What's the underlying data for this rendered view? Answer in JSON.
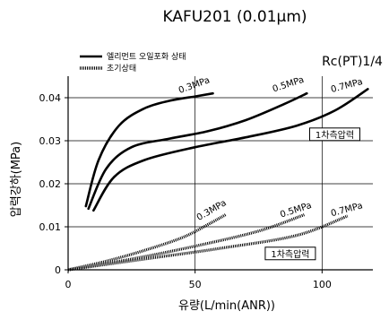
{
  "title": "KAFU201 (0.01μm)",
  "connection": "Rc(PT)1/4",
  "chart_data": {
    "type": "line",
    "title": "KAFU201 (0.01μm)",
    "xlabel": "유량(L/min(ANR))",
    "ylabel": "압력강하(MPa)",
    "xlim": [
      0,
      120
    ],
    "ylim": [
      0,
      0.045
    ],
    "xticks": [
      0,
      50,
      100
    ],
    "yticks": [
      0,
      0.01,
      0.02,
      0.03,
      0.04
    ],
    "xtick_labels": [
      "0",
      "50",
      "100"
    ],
    "ytick_labels": [
      "0",
      "0.01",
      "0.02",
      "0.03",
      "0.04"
    ],
    "grid": true,
    "legend_position": "top-left",
    "legend": [
      {
        "label": "엘리먼트 오일포화 상태",
        "style": "solid"
      },
      {
        "label": "초기상태",
        "style": "hatched"
      }
    ],
    "series": [
      {
        "name": "엘리먼트 오일포화 상태",
        "label": "0.3MPa",
        "x": [
          7,
          12,
          20,
          30,
          40,
          50,
          57
        ],
        "y": [
          0.0148,
          0.0255,
          0.0335,
          0.0375,
          0.0393,
          0.0403,
          0.041
        ]
      },
      {
        "name": "엘리먼트 오일포화 상태",
        "label": "0.5MPa",
        "x": [
          8,
          15,
          25,
          40,
          55,
          70,
          85,
          94
        ],
        "y": [
          0.0142,
          0.0235,
          0.0285,
          0.0305,
          0.0322,
          0.0348,
          0.0385,
          0.041
        ]
      },
      {
        "name": "엘리먼트 오일포화 상태",
        "label": "0.7MPa",
        "x": [
          10,
          18,
          30,
          50,
          70,
          90,
          105,
          118
        ],
        "y": [
          0.0138,
          0.0215,
          0.0255,
          0.0285,
          0.0308,
          0.0335,
          0.037,
          0.042
        ]
      },
      {
        "name": "초기상태",
        "label": "0.3MPa",
        "x": [
          0,
          15,
          30,
          45,
          55,
          62
        ],
        "y": [
          0,
          0.002,
          0.0045,
          0.0075,
          0.0105,
          0.0128
        ]
      },
      {
        "name": "초기상태",
        "label": "0.5MPa",
        "x": [
          0,
          25,
          50,
          75,
          93
        ],
        "y": [
          0,
          0.0025,
          0.0055,
          0.009,
          0.0128
        ]
      },
      {
        "name": "초기상태",
        "label": "0.7MPa",
        "x": [
          0,
          30,
          60,
          90,
          110
        ],
        "y": [
          0,
          0.0025,
          0.005,
          0.008,
          0.0125
        ]
      }
    ],
    "annotations": [
      {
        "text": "0.3MPa",
        "x": 50,
        "y": 0.0423,
        "rotate": -20
      },
      {
        "text": "0.5MPa",
        "x": 87,
        "y": 0.0425,
        "rotate": -18
      },
      {
        "text": "0.7MPa",
        "x": 110,
        "y": 0.0422,
        "rotate": -15
      },
      {
        "text": "0.3MPa",
        "x": 57,
        "y": 0.0133,
        "rotate": -30
      },
      {
        "text": "0.5MPa",
        "x": 90,
        "y": 0.0133,
        "rotate": -18
      },
      {
        "text": "0.7MPa",
        "x": 110,
        "y": 0.0134,
        "rotate": -15
      }
    ],
    "boxed_labels": [
      {
        "text": "1차측압력",
        "x": 105,
        "y": 0.0315
      },
      {
        "text": "1차측압력",
        "x": 87.5,
        "y": 0.0038
      }
    ]
  }
}
